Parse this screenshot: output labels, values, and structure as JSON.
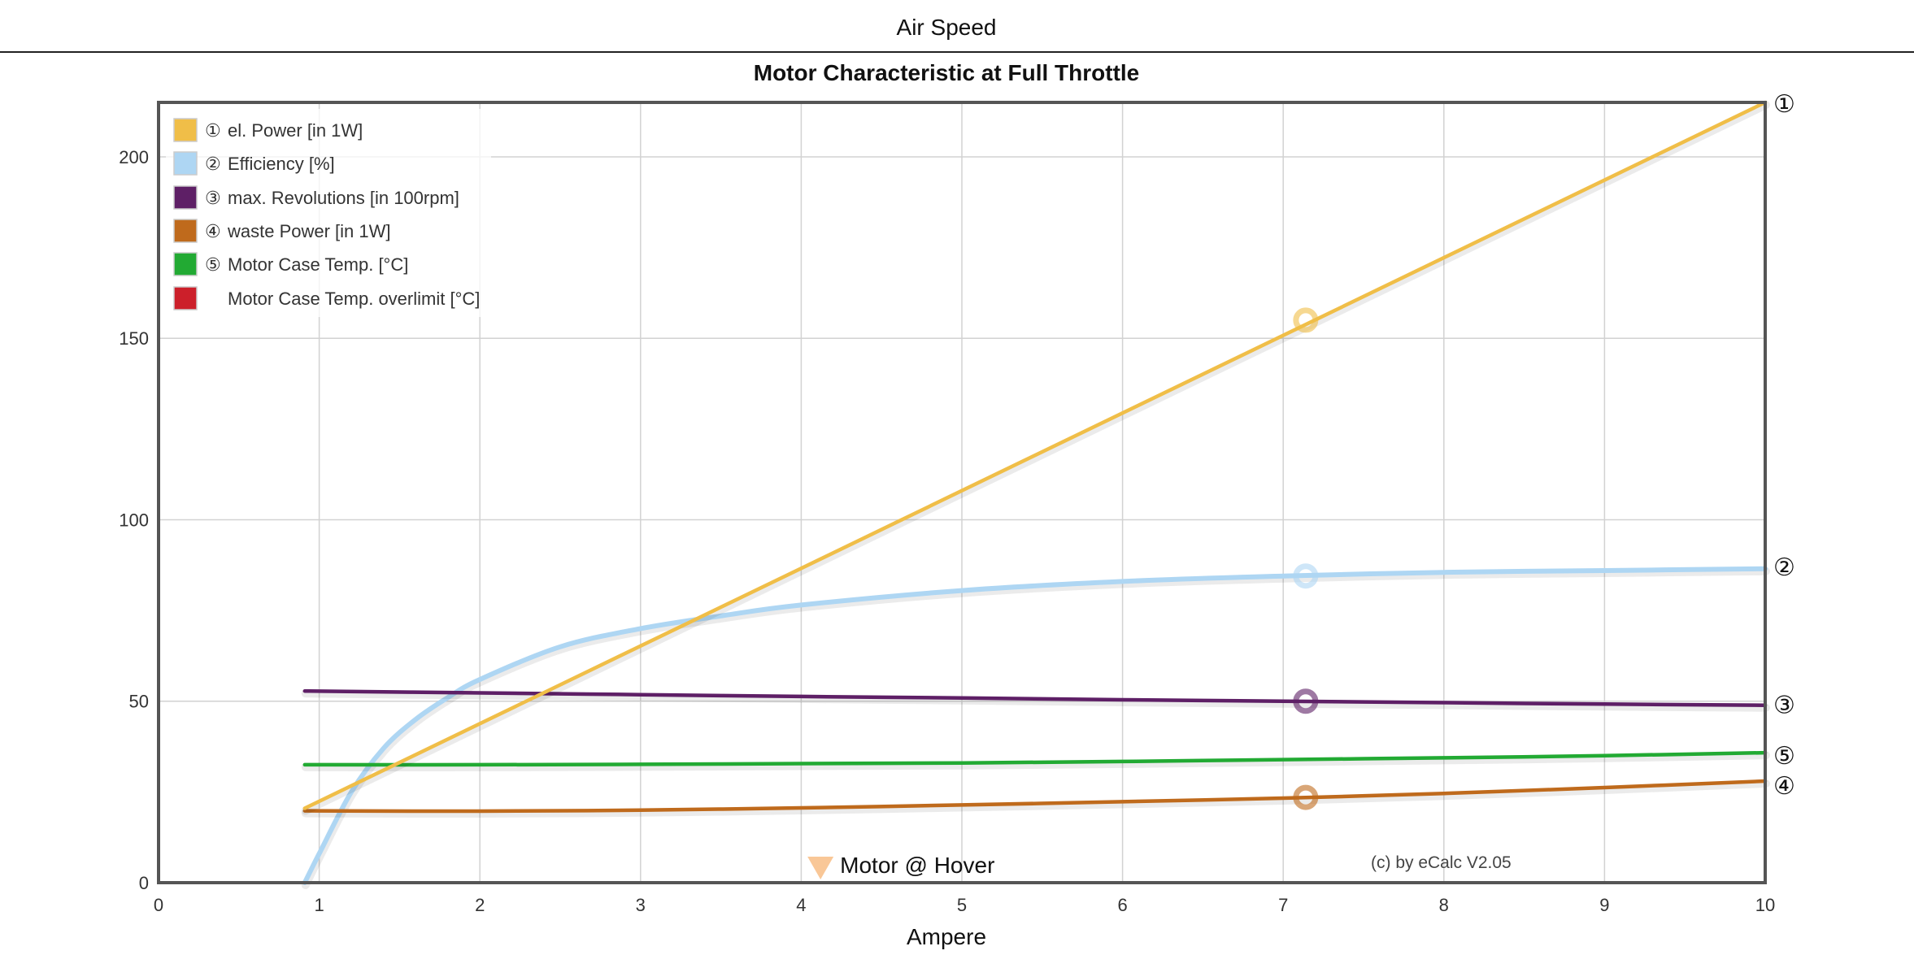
{
  "page": {
    "title": "Air Speed"
  },
  "chart_data": {
    "type": "line",
    "title": "Motor Characteristic at Full Throttle",
    "xlabel": "Ampere",
    "ylabel": "",
    "xlim": [
      0,
      10
    ],
    "ylim": [
      0,
      215
    ],
    "xticks": [
      0,
      1,
      2,
      3,
      4,
      5,
      6,
      7,
      8,
      9,
      10
    ],
    "yticks": [
      0,
      50,
      100,
      150,
      200
    ],
    "grid": true,
    "legend_position": "top-left",
    "series": [
      {
        "name": "el. Power [in 1W]",
        "marker": "①",
        "end_label": "①",
        "color": "#f0be48",
        "x": [
          0.91,
          10.0
        ],
        "y": [
          20.5,
          215.0
        ],
        "highlight": {
          "x": 7.14,
          "y": 155.0
        }
      },
      {
        "name": "Efficiency [%]",
        "marker": "②",
        "end_label": "②",
        "color": "#aed6f3",
        "x": [
          0.91,
          1.0,
          1.2,
          1.4,
          1.6,
          1.8,
          2.0,
          2.5,
          3.0,
          3.5,
          4.0,
          5.0,
          6.0,
          7.0,
          8.0,
          9.0,
          10.0
        ],
        "y": [
          0,
          8,
          25,
          37,
          45,
          51,
          56,
          65,
          70,
          73.5,
          76.5,
          80.5,
          83,
          84.5,
          85.5,
          86,
          86.5
        ],
        "highlight": {
          "x": 7.14,
          "y": 84.5
        }
      },
      {
        "name": "max. Revolutions [in 100rpm]",
        "marker": "③",
        "end_label": "③",
        "color": "#5e1f66",
        "x": [
          0.91,
          2.0,
          3.0,
          4.0,
          5.0,
          6.0,
          7.0,
          8.0,
          9.0,
          10.0
        ],
        "y": [
          52.8,
          52.3,
          51.8,
          51.3,
          50.9,
          50.4,
          50.0,
          49.6,
          49.2,
          48.9
        ],
        "highlight": {
          "x": 7.14,
          "y": 50.0
        }
      },
      {
        "name": "waste Power [in 1W]",
        "marker": "④",
        "end_label": "④",
        "color": "#bf6a1c",
        "x": [
          0.91,
          2.0,
          3.0,
          4.0,
          5.0,
          6.0,
          7.0,
          8.0,
          9.0,
          10.0
        ],
        "y": [
          19.8,
          19.7,
          20.0,
          20.6,
          21.4,
          22.3,
          23.3,
          24.6,
          26.2,
          28.0
        ],
        "highlight": {
          "x": 7.14,
          "y": 23.5
        }
      },
      {
        "name": "Motor Case Temp. [°C]",
        "marker": "⑤",
        "end_label": "⑤",
        "color": "#22aa33",
        "x": [
          0.91,
          2.0,
          3.0,
          4.0,
          5.0,
          6.0,
          7.0,
          8.0,
          9.0,
          10.0
        ],
        "y": [
          32.5,
          32.5,
          32.6,
          32.8,
          33.0,
          33.4,
          33.9,
          34.4,
          35.0,
          35.8
        ]
      },
      {
        "name": "Motor Case Temp. overlimit [°C]",
        "marker": "",
        "color": "#cc1f2a",
        "x": [],
        "y": []
      }
    ],
    "annotations": [
      {
        "text": "Motor @ Hover",
        "x": 4.1,
        "marker_color": "#f9c797"
      },
      {
        "text": "(c) by eCalc  V2.05"
      }
    ]
  }
}
